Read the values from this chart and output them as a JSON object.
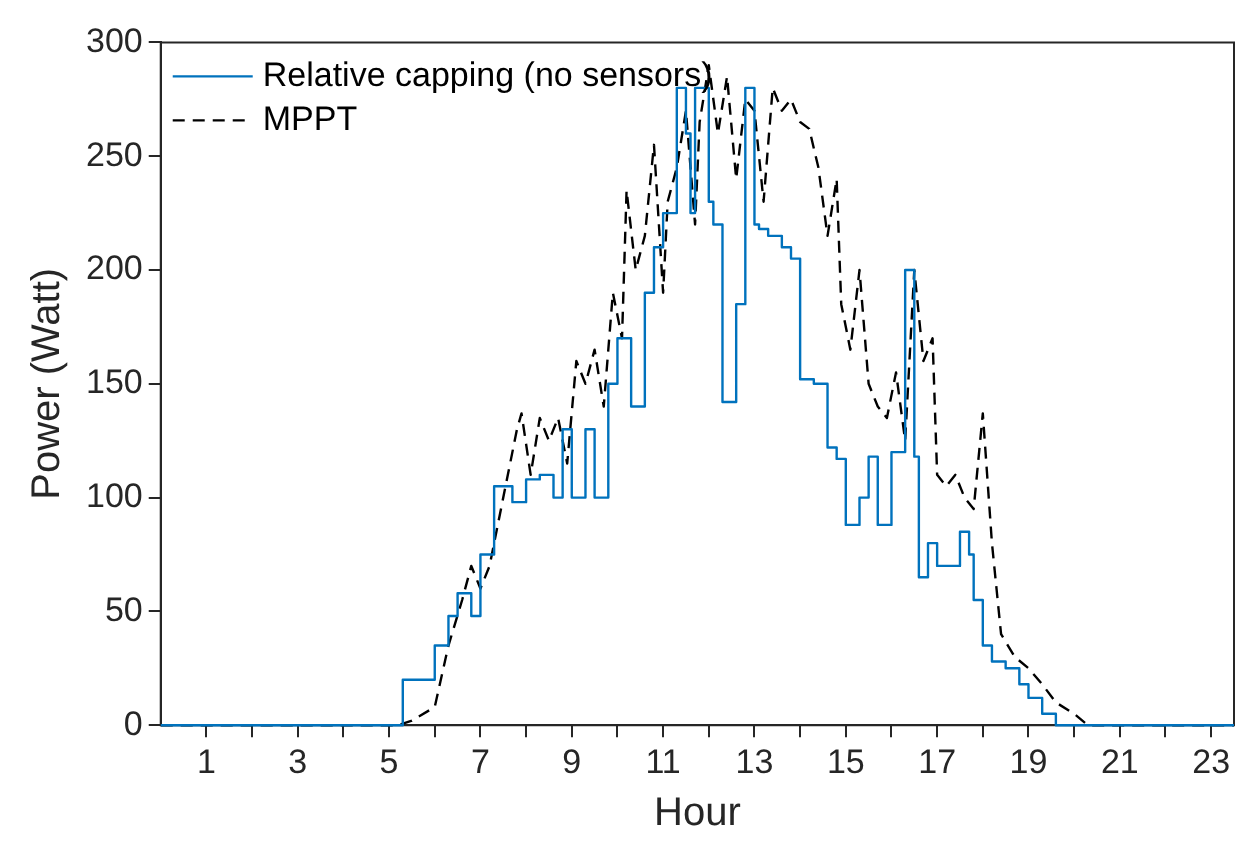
{
  "chart_data": {
    "type": "line",
    "xlabel": "Hour",
    "ylabel": "Power (Watt)",
    "xlim": [
      0,
      23.5
    ],
    "xticks": [
      {
        "value": 1,
        "label": "1"
      },
      {
        "value": 2,
        "label": null
      },
      {
        "value": 3,
        "label": "3"
      },
      {
        "value": 4,
        "label": null
      },
      {
        "value": 5,
        "label": "5"
      },
      {
        "value": 6,
        "label": null
      },
      {
        "value": 7,
        "label": "7"
      },
      {
        "value": 8,
        "label": null
      },
      {
        "value": 9,
        "label": "9"
      },
      {
        "value": 10,
        "label": null
      },
      {
        "value": 11,
        "label": "11"
      },
      {
        "value": 12,
        "label": null
      },
      {
        "value": 13,
        "label": "13"
      },
      {
        "value": 14,
        "label": null
      },
      {
        "value": 15,
        "label": "15"
      },
      {
        "value": 16,
        "label": null
      },
      {
        "value": 17,
        "label": "17"
      },
      {
        "value": 18,
        "label": null
      },
      {
        "value": 19,
        "label": "19"
      },
      {
        "value": 20,
        "label": null
      },
      {
        "value": 21,
        "label": "21"
      },
      {
        "value": 22,
        "label": null
      },
      {
        "value": 23,
        "label": "23"
      }
    ],
    "ylim": [
      0,
      300
    ],
    "yticks": [
      0,
      50,
      100,
      150,
      200,
      250,
      300
    ],
    "grid": false,
    "legend": "top left",
    "series": [
      {
        "name": "Relative capping (no sensors)",
        "type": "step",
        "color": "#0072bd",
        "line_style": "solid",
        "x": [
          0,
          5.3,
          6.0,
          6.3,
          6.5,
          6.8,
          7.0,
          7.3,
          7.7,
          8.0,
          8.3,
          8.6,
          8.8,
          9.0,
          9.3,
          9.5,
          9.8,
          10.0,
          10.3,
          10.6,
          10.8,
          11.0,
          11.3,
          11.5,
          11.6,
          11.7,
          12.0,
          12.1,
          12.3,
          12.6,
          12.8,
          13.0,
          13.1,
          13.3,
          13.6,
          13.8,
          14.0,
          14.3,
          14.6,
          14.8,
          15.0,
          15.3,
          15.5,
          15.7,
          16.0,
          16.3,
          16.5,
          16.6,
          16.8,
          17.0,
          17.2,
          17.5,
          17.7,
          17.8,
          18.0,
          18.2,
          18.5,
          18.8,
          19.0,
          19.3,
          19.6,
          20.0,
          23.5
        ],
        "values": [
          0,
          0,
          20,
          35,
          48,
          58,
          48,
          75,
          105,
          98,
          108,
          110,
          100,
          130,
          100,
          130,
          100,
          150,
          170,
          140,
          190,
          210,
          225,
          280,
          260,
          225,
          280,
          230,
          220,
          142,
          185,
          280,
          220,
          218,
          215,
          210,
          205,
          152,
          150,
          122,
          117,
          88,
          100,
          118,
          88,
          120,
          200,
          118,
          65,
          80,
          70,
          70,
          85,
          75,
          55,
          35,
          28,
          25,
          18,
          12,
          5,
          0,
          0
        ]
      },
      {
        "name": "MPPT",
        "type": "line",
        "color": "#000000",
        "line_style": "dashed",
        "x": [
          0,
          5.2,
          5.5,
          6.0,
          6.3,
          6.6,
          6.8,
          7.0,
          7.2,
          7.5,
          7.8,
          7.9,
          8.1,
          8.3,
          8.5,
          8.7,
          8.9,
          9.1,
          9.3,
          9.5,
          9.7,
          9.9,
          10.1,
          10.2,
          10.4,
          10.6,
          10.8,
          11.0,
          11.1,
          11.3,
          11.5,
          11.7,
          11.8,
          12.0,
          12.2,
          12.4,
          12.6,
          12.8,
          13.0,
          13.2,
          13.4,
          13.6,
          13.8,
          14.0,
          14.2,
          14.4,
          14.6,
          14.8,
          14.9,
          15.1,
          15.3,
          15.5,
          15.7,
          15.9,
          16.1,
          16.3,
          16.5,
          16.7,
          16.9,
          17.0,
          17.2,
          17.4,
          17.6,
          17.8,
          18.0,
          18.2,
          18.4,
          18.7,
          19.0,
          19.3,
          19.6,
          20.0,
          20.3,
          23.5
        ],
        "values": [
          0,
          0,
          2,
          8,
          35,
          55,
          70,
          60,
          70,
          100,
          130,
          137,
          110,
          135,
          125,
          135,
          115,
          160,
          150,
          165,
          140,
          190,
          170,
          235,
          200,
          215,
          255,
          190,
          230,
          245,
          270,
          220,
          265,
          290,
          260,
          285,
          240,
          275,
          270,
          230,
          280,
          270,
          275,
          265,
          262,
          245,
          215,
          240,
          185,
          165,
          200,
          150,
          140,
          135,
          155,
          125,
          200,
          160,
          170,
          110,
          105,
          110,
          100,
          95,
          137,
          80,
          40,
          30,
          25,
          18,
          10,
          5,
          0,
          0
        ]
      }
    ]
  }
}
